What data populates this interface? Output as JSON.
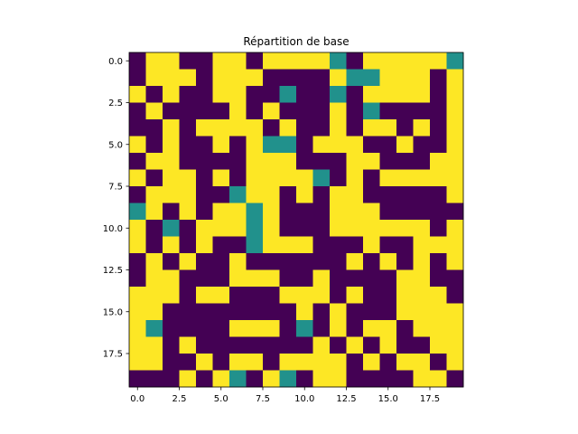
{
  "chart_data": {
    "type": "heatmap",
    "title": "Répartition de base",
    "xlabel": "",
    "ylabel": "",
    "xlim": [
      -0.5,
      19.5
    ],
    "ylim": [
      19.5,
      -0.5
    ],
    "x_ticks": [
      0.0,
      2.5,
      5.0,
      7.5,
      10.0,
      12.5,
      15.0,
      17.5
    ],
    "x_tick_labels": [
      "0.0",
      "2.5",
      "5.0",
      "7.5",
      "10.0",
      "12.5",
      "15.0",
      "17.5"
    ],
    "y_ticks": [
      0.0,
      2.5,
      5.0,
      7.5,
      10.0,
      12.5,
      15.0,
      17.5
    ],
    "y_tick_labels": [
      "0.0",
      "2.5",
      "5.0",
      "7.5",
      "10.0",
      "12.5",
      "15.0",
      "17.5"
    ],
    "grid": false,
    "colormap": [
      "#440154",
      "#21918c",
      "#fde725"
    ],
    "values": [
      [
        0,
        2,
        2,
        0,
        0,
        2,
        2,
        0,
        2,
        2,
        2,
        2,
        1,
        0,
        2,
        2,
        2,
        2,
        2,
        1
      ],
      [
        0,
        2,
        2,
        2,
        0,
        2,
        2,
        2,
        0,
        0,
        0,
        0,
        2,
        1,
        1,
        2,
        2,
        2,
        0,
        2
      ],
      [
        2,
        0,
        2,
        0,
        0,
        2,
        2,
        0,
        0,
        1,
        0,
        0,
        1,
        0,
        2,
        2,
        2,
        2,
        0,
        2
      ],
      [
        0,
        2,
        0,
        0,
        0,
        0,
        2,
        0,
        2,
        0,
        0,
        0,
        2,
        0,
        1,
        0,
        0,
        0,
        0,
        2
      ],
      [
        0,
        0,
        2,
        0,
        2,
        2,
        2,
        2,
        0,
        2,
        0,
        0,
        2,
        0,
        2,
        2,
        0,
        2,
        0,
        2
      ],
      [
        2,
        0,
        2,
        0,
        0,
        2,
        0,
        2,
        1,
        1,
        0,
        2,
        2,
        2,
        0,
        0,
        2,
        0,
        0,
        2
      ],
      [
        0,
        2,
        2,
        0,
        0,
        0,
        0,
        2,
        2,
        2,
        0,
        0,
        0,
        2,
        2,
        0,
        0,
        0,
        2,
        2
      ],
      [
        2,
        0,
        2,
        2,
        0,
        2,
        0,
        2,
        2,
        2,
        2,
        1,
        0,
        2,
        0,
        2,
        2,
        2,
        2,
        2
      ],
      [
        0,
        2,
        2,
        2,
        0,
        0,
        1,
        2,
        2,
        0,
        2,
        0,
        2,
        2,
        0,
        0,
        0,
        0,
        0,
        2
      ],
      [
        1,
        2,
        0,
        2,
        0,
        2,
        2,
        1,
        2,
        0,
        0,
        0,
        2,
        2,
        2,
        0,
        0,
        0,
        0,
        0
      ],
      [
        2,
        0,
        1,
        0,
        2,
        2,
        2,
        1,
        2,
        0,
        0,
        0,
        2,
        2,
        2,
        2,
        2,
        2,
        0,
        2
      ],
      [
        2,
        0,
        2,
        0,
        2,
        0,
        0,
        1,
        2,
        2,
        2,
        0,
        0,
        0,
        2,
        0,
        0,
        2,
        2,
        2
      ],
      [
        0,
        2,
        0,
        2,
        0,
        0,
        2,
        0,
        0,
        0,
        0,
        0,
        0,
        2,
        0,
        2,
        0,
        2,
        0,
        2
      ],
      [
        0,
        2,
        2,
        0,
        0,
        0,
        2,
        2,
        2,
        0,
        0,
        2,
        0,
        0,
        0,
        0,
        2,
        2,
        0,
        0
      ],
      [
        2,
        2,
        2,
        0,
        2,
        2,
        0,
        0,
        0,
        2,
        2,
        2,
        0,
        2,
        0,
        0,
        2,
        2,
        2,
        0
      ],
      [
        2,
        2,
        0,
        0,
        0,
        0,
        0,
        0,
        0,
        0,
        2,
        0,
        2,
        0,
        0,
        0,
        2,
        2,
        2,
        2
      ],
      [
        2,
        1,
        0,
        0,
        0,
        0,
        2,
        2,
        2,
        0,
        1,
        0,
        2,
        0,
        2,
        2,
        0,
        2,
        2,
        2
      ],
      [
        2,
        2,
        0,
        2,
        0,
        0,
        0,
        0,
        0,
        0,
        0,
        2,
        0,
        2,
        0,
        2,
        0,
        0,
        2,
        2
      ],
      [
        2,
        2,
        0,
        0,
        2,
        0,
        2,
        2,
        0,
        2,
        2,
        2,
        2,
        0,
        2,
        0,
        2,
        2,
        0,
        2
      ],
      [
        0,
        0,
        0,
        2,
        0,
        2,
        1,
        0,
        2,
        1,
        0,
        2,
        2,
        0,
        0,
        0,
        0,
        2,
        2,
        0
      ]
    ]
  }
}
